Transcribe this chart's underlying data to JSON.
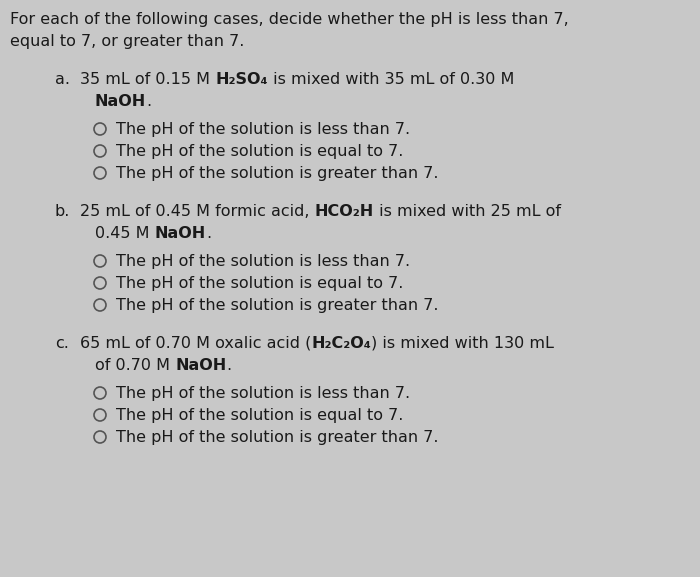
{
  "background_color": "#c8c8c8",
  "text_color": "#1a1a1a",
  "font_size": 11.5,
  "header_line1": "For each of the following cases, decide whether the pH is less than 7,",
  "header_line2": "equal to 7, or greater than 7.",
  "sections": [
    {
      "label": "a.",
      "line1_pre": "35 mL of 0.15 M ",
      "line1_bold": "H₂SO₄",
      "line1_post": " is mixed with 35 mL of 0.30 M",
      "line2_pre": "",
      "line2_bold": "NaOH",
      "line2_post": ".",
      "options": [
        "The pH of the solution is less than 7.",
        "The pH of the solution is equal to 7.",
        "The pH of the solution is greater than 7."
      ]
    },
    {
      "label": "b.",
      "line1_pre": "25 mL of 0.45 M formic acid, ",
      "line1_bold": "HCO₂H",
      "line1_post": " is mixed with 25 mL of",
      "line2_pre": "0.45 M ",
      "line2_bold": "NaOH",
      "line2_post": ".",
      "options": [
        "The pH of the solution is less than 7.",
        "The pH of the solution is equal to 7.",
        "The pH of the solution is greater than 7."
      ]
    },
    {
      "label": "c.",
      "line1_pre": "65 mL of 0.70 M oxalic acid (",
      "line1_bold": "H₂C₂O₄",
      "line1_post": ") is mixed with 130 mL",
      "line2_pre": "of 0.70 M ",
      "line2_bold": "NaOH",
      "line2_post": ".",
      "options": [
        "The pH of the solution is less than 7.",
        "The pH of the solution is equal to 7.",
        "The pH of the solution is greater than 7."
      ]
    }
  ]
}
